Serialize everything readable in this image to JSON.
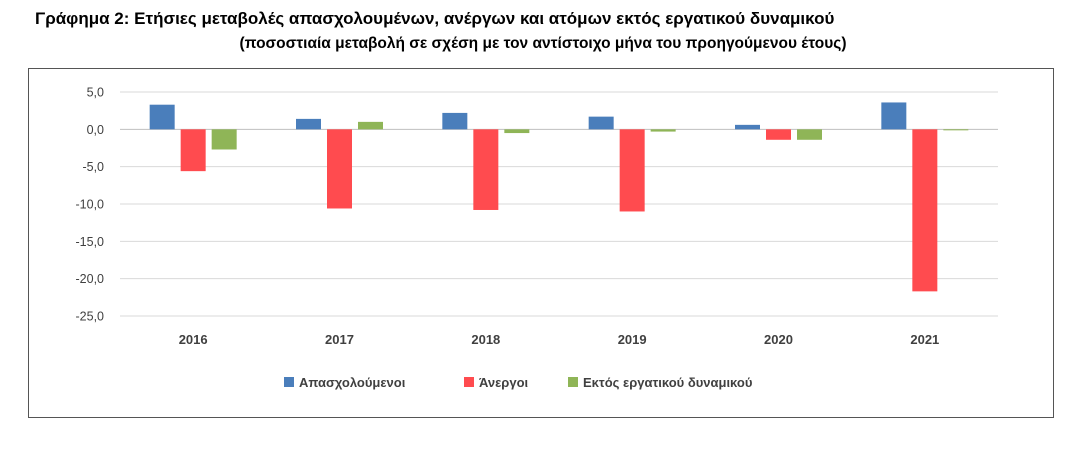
{
  "chart_data": {
    "type": "bar",
    "title": "Γράφημα 2: Ετήσιες μεταβολές απασχολουμένων, ανέργων και ατόμων εκτός εργατικού δυναμικού",
    "subtitle": "(ποσοστιαία μεταβολή σε σχέση με τον αντίστοιχο μήνα του προηγούμενου έτους)",
    "categories": [
      "2016",
      "2017",
      "2018",
      "2019",
      "2020",
      "2021"
    ],
    "series": [
      {
        "name": "Απασχολούμενοι",
        "color": "#4a7ebb",
        "values": [
          3.3,
          1.4,
          2.2,
          1.7,
          0.6,
          3.6
        ]
      },
      {
        "name": "Άνεργοι",
        "color": "#ff4b4f",
        "values": [
          -5.6,
          -10.6,
          -10.8,
          -11.0,
          -1.4,
          -21.7
        ]
      },
      {
        "name": "Εκτός εργατικού δυναμικού",
        "color": "#8fb557",
        "values": [
          -2.7,
          1.0,
          -0.5,
          -0.3,
          -1.4,
          -0.1
        ]
      }
    ],
    "yticks": [
      "5,0",
      "0,0",
      "-5,0",
      "-10,0",
      "-15,0",
      "-20,0",
      "-25,0"
    ],
    "ylim": [
      -25,
      5
    ],
    "xlabel": "",
    "ylabel": "",
    "grid": true,
    "legend_position": "bottom"
  }
}
